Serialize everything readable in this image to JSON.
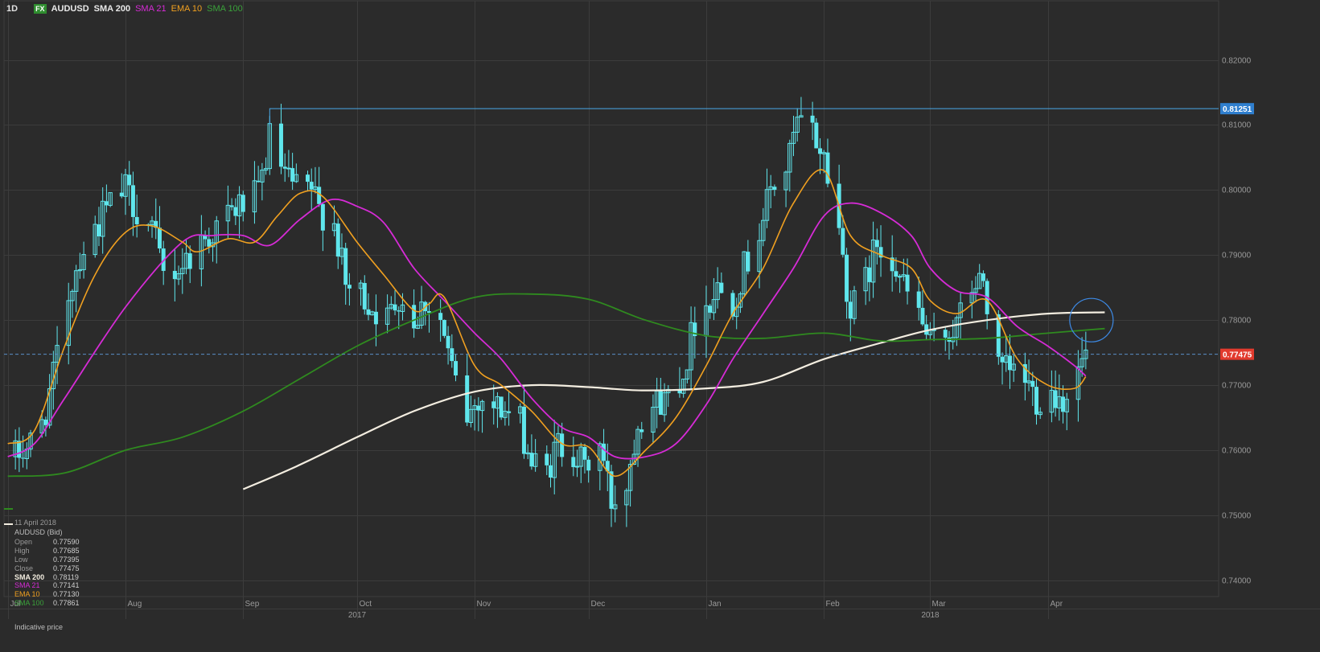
{
  "header": {
    "timeframe": "1D",
    "fx_badge": "FX",
    "symbol": "AUDUSD",
    "indicators": [
      "SMA 200",
      "SMA 21",
      "EMA 10",
      "SMA 100"
    ]
  },
  "colors": {
    "background": "#2b2b2b",
    "grid": "#3c3c3c",
    "candle": "#5fe6ec",
    "sma200": "#f3ede0",
    "sma21": "#d62bd6",
    "ema10": "#f0a020",
    "sma100": "#2f8a1f",
    "resistance": "#4aa8e8",
    "current_price": "#e23b2e"
  },
  "info_panel": {
    "date": "11 April 2018",
    "instrument": "AUDUSD (Bid)",
    "rows": [
      {
        "label": "Open",
        "value": "0.77590",
        "color": "#9a9a9a"
      },
      {
        "label": "High",
        "value": "0.77685",
        "color": "#9a9a9a"
      },
      {
        "label": "Low",
        "value": "0.77395",
        "color": "#9a9a9a"
      },
      {
        "label": "Close",
        "value": "0.77475",
        "color": "#9a9a9a"
      },
      {
        "label": "SMA 200",
        "value": "0.78119",
        "color": "#f3ede0"
      },
      {
        "label": "SMA 21",
        "value": "0.77141",
        "color": "#d62bd6"
      },
      {
        "label": "EMA 10",
        "value": "0.77130",
        "color": "#f0a020"
      },
      {
        "label": "SMA 100",
        "value": "0.77861",
        "color": "#3aa13a"
      }
    ],
    "note": "Indicative price"
  },
  "chart_data": {
    "type": "candlestick",
    "ylim": [
      0.7375,
      0.8265
    ],
    "y_ticks": [
      "0.82000",
      "0.81000",
      "0.80000",
      "0.79000",
      "0.78000",
      "0.77000",
      "0.76000",
      "0.75000",
      "0.74000"
    ],
    "x_start": "2017-06-30",
    "x_end": "2018-05-16",
    "month_ticks": [
      {
        "date": "2017-07-01",
        "label": "Jul"
      },
      {
        "date": "2017-08-01",
        "label": "Aug"
      },
      {
        "date": "2017-09-01",
        "label": "Sep"
      },
      {
        "date": "2017-10-01",
        "label": "Oct"
      },
      {
        "date": "2017-11-01",
        "label": "Nov"
      },
      {
        "date": "2017-12-01",
        "label": "Dec"
      },
      {
        "date": "2018-01-01",
        "label": "Jan"
      },
      {
        "date": "2018-02-01",
        "label": "Feb"
      },
      {
        "date": "2018-03-01",
        "label": "Mar"
      },
      {
        "date": "2018-04-01",
        "label": "Apr"
      }
    ],
    "year_labels": [
      {
        "date": "2017-10-01",
        "label": "2017"
      },
      {
        "date": "2018-03-01",
        "label": "2018"
      }
    ],
    "resistance": {
      "value": 0.81251,
      "label": "0.81251",
      "from": "2017-09-08"
    },
    "current_price": {
      "value": 0.77475,
      "label": "0.77475"
    },
    "candle_anchors": [
      [
        "2017-07-03",
        0.759
      ],
      [
        "2017-07-07",
        0.761
      ],
      [
        "2017-07-10",
        0.764
      ],
      [
        "2017-07-13",
        0.771
      ],
      [
        "2017-07-17",
        0.784
      ],
      [
        "2017-07-20",
        0.79
      ],
      [
        "2017-07-24",
        0.794
      ],
      [
        "2017-07-27",
        0.797
      ],
      [
        "2017-08-01",
        0.8
      ],
      [
        "2017-08-04",
        0.797
      ],
      [
        "2017-08-08",
        0.794
      ],
      [
        "2017-08-11",
        0.787
      ],
      [
        "2017-08-15",
        0.788
      ],
      [
        "2017-08-18",
        0.79
      ],
      [
        "2017-08-21",
        0.792
      ],
      [
        "2017-08-24",
        0.7935
      ],
      [
        "2017-08-28",
        0.796
      ],
      [
        "2017-09-01",
        0.798
      ],
      [
        "2017-09-05",
        0.799
      ],
      [
        "2017-09-08",
        0.808
      ],
      [
        "2017-09-12",
        0.802
      ],
      [
        "2017-09-15",
        0.8
      ],
      [
        "2017-09-19",
        0.8
      ],
      [
        "2017-09-21",
        0.797
      ],
      [
        "2017-09-25",
        0.795
      ],
      [
        "2017-09-28",
        0.785
      ],
      [
        "2017-10-02",
        0.784
      ],
      [
        "2017-10-05",
        0.782
      ],
      [
        "2017-10-09",
        0.78
      ],
      [
        "2017-10-12",
        0.784
      ],
      [
        "2017-10-16",
        0.78
      ],
      [
        "2017-10-19",
        0.783
      ],
      [
        "2017-10-23",
        0.78
      ],
      [
        "2017-10-26",
        0.772
      ],
      [
        "2017-10-30",
        0.765
      ],
      [
        "2017-11-02",
        0.768
      ],
      [
        "2017-11-06",
        0.767
      ],
      [
        "2017-11-09",
        0.766
      ],
      [
        "2017-11-13",
        0.764
      ],
      [
        "2017-11-16",
        0.758
      ],
      [
        "2017-11-20",
        0.7565
      ],
      [
        "2017-11-23",
        0.761
      ],
      [
        "2017-11-27",
        0.76
      ],
      [
        "2017-11-30",
        0.757
      ],
      [
        "2017-12-04",
        0.761
      ],
      [
        "2017-12-07",
        0.752
      ],
      [
        "2017-12-11",
        0.755
      ],
      [
        "2017-12-14",
        0.765
      ],
      [
        "2017-12-18",
        0.767
      ],
      [
        "2017-12-21",
        0.768
      ],
      [
        "2017-12-26",
        0.772
      ],
      [
        "2017-12-29",
        0.78
      ],
      [
        "2018-01-04",
        0.785
      ],
      [
        "2018-01-08",
        0.783
      ],
      [
        "2018-01-11",
        0.788
      ],
      [
        "2018-01-15",
        0.794
      ],
      [
        "2018-01-18",
        0.8
      ],
      [
        "2018-01-22",
        0.803
      ],
      [
        "2018-01-25",
        0.81
      ],
      [
        "2018-01-29",
        0.809
      ],
      [
        "2018-02-01",
        0.805
      ],
      [
        "2018-02-05",
        0.794
      ],
      [
        "2018-02-08",
        0.781
      ],
      [
        "2018-02-12",
        0.786
      ],
      [
        "2018-02-15",
        0.792
      ],
      [
        "2018-02-19",
        0.79
      ],
      [
        "2018-02-22",
        0.785
      ],
      [
        "2018-02-26",
        0.781
      ],
      [
        "2018-03-01",
        0.776
      ],
      [
        "2018-03-05",
        0.778
      ],
      [
        "2018-03-08",
        0.779
      ],
      [
        "2018-03-12",
        0.785
      ],
      [
        "2018-03-15",
        0.786
      ],
      [
        "2018-03-19",
        0.772
      ],
      [
        "2018-03-22",
        0.772
      ],
      [
        "2018-03-26",
        0.771
      ],
      [
        "2018-03-29",
        0.768
      ],
      [
        "2018-04-02",
        0.769
      ],
      [
        "2018-04-05",
        0.768
      ],
      [
        "2018-04-09",
        0.772
      ],
      [
        "2018-04-11",
        0.7747
      ]
    ],
    "series": [
      {
        "name": "SMA 200",
        "color": "#f3ede0",
        "points": [
          [
            "2017-09-01",
            0.754
          ],
          [
            "2017-09-15",
            0.7575
          ],
          [
            "2017-10-01",
            0.762
          ],
          [
            "2017-10-16",
            0.766
          ],
          [
            "2017-11-01",
            0.769
          ],
          [
            "2017-11-16",
            0.77
          ],
          [
            "2017-12-01",
            0.7697
          ],
          [
            "2017-12-15",
            0.7692
          ],
          [
            "2018-01-01",
            0.7695
          ],
          [
            "2018-01-16",
            0.7705
          ],
          [
            "2018-02-01",
            0.774
          ],
          [
            "2018-02-16",
            0.7765
          ],
          [
            "2018-03-01",
            0.7785
          ],
          [
            "2018-03-16",
            0.78
          ],
          [
            "2018-04-01",
            0.781
          ],
          [
            "2018-04-16",
            0.7812
          ]
        ]
      },
      {
        "name": "SMA 100",
        "color": "#2f8a1f",
        "points": [
          [
            "2017-07-01",
            0.756
          ],
          [
            "2017-07-16",
            0.7565
          ],
          [
            "2017-08-01",
            0.76
          ],
          [
            "2017-08-16",
            0.762
          ],
          [
            "2017-09-01",
            0.766
          ],
          [
            "2017-09-16",
            0.771
          ],
          [
            "2017-10-01",
            0.776
          ],
          [
            "2017-10-16",
            0.78
          ],
          [
            "2017-11-01",
            0.7835
          ],
          [
            "2017-11-16",
            0.784
          ],
          [
            "2017-12-01",
            0.7832
          ],
          [
            "2017-12-16",
            0.78
          ],
          [
            "2018-01-01",
            0.7776
          ],
          [
            "2018-01-16",
            0.7772
          ],
          [
            "2018-02-01",
            0.778
          ],
          [
            "2018-02-16",
            0.7768
          ],
          [
            "2018-03-01",
            0.777
          ],
          [
            "2018-03-16",
            0.7772
          ],
          [
            "2018-04-01",
            0.778
          ],
          [
            "2018-04-16",
            0.7787
          ]
        ]
      },
      {
        "name": "SMA 21",
        "color": "#d62bd6",
        "points": [
          [
            "2017-07-01",
            0.759
          ],
          [
            "2017-07-08",
            0.761
          ],
          [
            "2017-07-16",
            0.768
          ],
          [
            "2017-08-01",
            0.782
          ],
          [
            "2017-08-16",
            0.792
          ],
          [
            "2017-08-24",
            0.793
          ],
          [
            "2017-09-01",
            0.793
          ],
          [
            "2017-09-08",
            0.7915
          ],
          [
            "2017-09-16",
            0.7955
          ],
          [
            "2017-09-24",
            0.7985
          ],
          [
            "2017-10-01",
            0.7975
          ],
          [
            "2017-10-08",
            0.795
          ],
          [
            "2017-10-16",
            0.788
          ],
          [
            "2017-10-24",
            0.783
          ],
          [
            "2017-11-01",
            0.778
          ],
          [
            "2017-11-08",
            0.774
          ],
          [
            "2017-11-16",
            0.768
          ],
          [
            "2017-11-24",
            0.7635
          ],
          [
            "2017-12-01",
            0.762
          ],
          [
            "2017-12-08",
            0.759
          ],
          [
            "2017-12-16",
            0.759
          ],
          [
            "2017-12-24",
            0.761
          ],
          [
            "2018-01-01",
            0.767
          ],
          [
            "2018-01-08",
            0.774
          ],
          [
            "2018-01-16",
            0.781
          ],
          [
            "2018-01-24",
            0.788
          ],
          [
            "2018-02-01",
            0.796
          ],
          [
            "2018-02-08",
            0.798
          ],
          [
            "2018-02-16",
            0.7965
          ],
          [
            "2018-02-24",
            0.793
          ],
          [
            "2018-03-01",
            0.788
          ],
          [
            "2018-03-08",
            0.7845
          ],
          [
            "2018-03-16",
            0.7835
          ],
          [
            "2018-03-24",
            0.779
          ],
          [
            "2018-04-01",
            0.776
          ],
          [
            "2018-04-08",
            0.773
          ],
          [
            "2018-04-11",
            0.7714
          ]
        ]
      },
      {
        "name": "EMA 10",
        "color": "#f0a020",
        "points": [
          [
            "2017-07-01",
            0.761
          ],
          [
            "2017-07-08",
            0.763
          ],
          [
            "2017-07-16",
            0.776
          ],
          [
            "2017-07-24",
            0.787
          ],
          [
            "2017-08-01",
            0.7935
          ],
          [
            "2017-08-08",
            0.7945
          ],
          [
            "2017-08-16",
            0.792
          ],
          [
            "2017-08-20",
            0.7905
          ],
          [
            "2017-08-28",
            0.7925
          ],
          [
            "2017-09-04",
            0.792
          ],
          [
            "2017-09-10",
            0.796
          ],
          [
            "2017-09-16",
            0.7995
          ],
          [
            "2017-09-22",
            0.799
          ],
          [
            "2017-10-01",
            0.792
          ],
          [
            "2017-10-08",
            0.787
          ],
          [
            "2017-10-16",
            0.7815
          ],
          [
            "2017-10-20",
            0.7825
          ],
          [
            "2017-10-24",
            0.7835
          ],
          [
            "2017-11-01",
            0.773
          ],
          [
            "2017-11-08",
            0.77
          ],
          [
            "2017-11-16",
            0.766
          ],
          [
            "2017-11-24",
            0.761
          ],
          [
            "2017-12-01",
            0.7605
          ],
          [
            "2017-12-08",
            0.756
          ],
          [
            "2017-12-16",
            0.76
          ],
          [
            "2017-12-24",
            0.765
          ],
          [
            "2018-01-01",
            0.773
          ],
          [
            "2018-01-08",
            0.781
          ],
          [
            "2018-01-16",
            0.788
          ],
          [
            "2018-01-24",
            0.798
          ],
          [
            "2018-02-01",
            0.803
          ],
          [
            "2018-02-08",
            0.793
          ],
          [
            "2018-02-16",
            0.79
          ],
          [
            "2018-02-24",
            0.788
          ],
          [
            "2018-03-01",
            0.783
          ],
          [
            "2018-03-08",
            0.781
          ],
          [
            "2018-03-16",
            0.783
          ],
          [
            "2018-03-24",
            0.774
          ],
          [
            "2018-04-01",
            0.77
          ],
          [
            "2018-04-08",
            0.7695
          ],
          [
            "2018-04-11",
            0.7713
          ]
        ]
      }
    ]
  }
}
